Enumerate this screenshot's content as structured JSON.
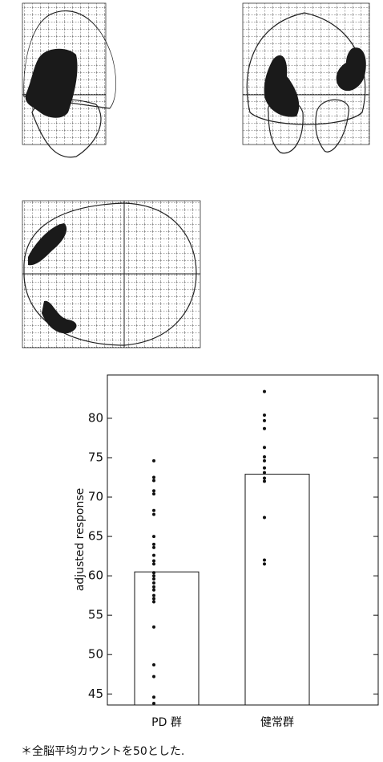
{
  "chart_data": {
    "type": "bar",
    "y_label": "adjusted response",
    "categories": [
      "PD 群",
      "健常群"
    ],
    "values": [
      60.5,
      72.9
    ],
    "color": "#ffffff",
    "points": [
      [
        74.6,
        72.5,
        72.1,
        70.8,
        70.4,
        68.3,
        67.8,
        65.0,
        64.0,
        63.6,
        62.6,
        61.9,
        61.5,
        60.4,
        60.0,
        59.6,
        59.1,
        58.6,
        58.2,
        57.5,
        57.1,
        56.7,
        53.5,
        48.7,
        47.2,
        44.6,
        43.8
      ],
      [
        83.4,
        80.4,
        79.7,
        78.7,
        76.3,
        75.1,
        74.6,
        73.7,
        73.1,
        72.4,
        72.0,
        67.4,
        62.0,
        61.5
      ]
    ],
    "ylim": [
      43.6,
      85.5
    ],
    "yticks": [
      45,
      50,
      55,
      60,
      65,
      70,
      75,
      80
    ],
    "note": "＊全脳平均カウントを50とした."
  }
}
